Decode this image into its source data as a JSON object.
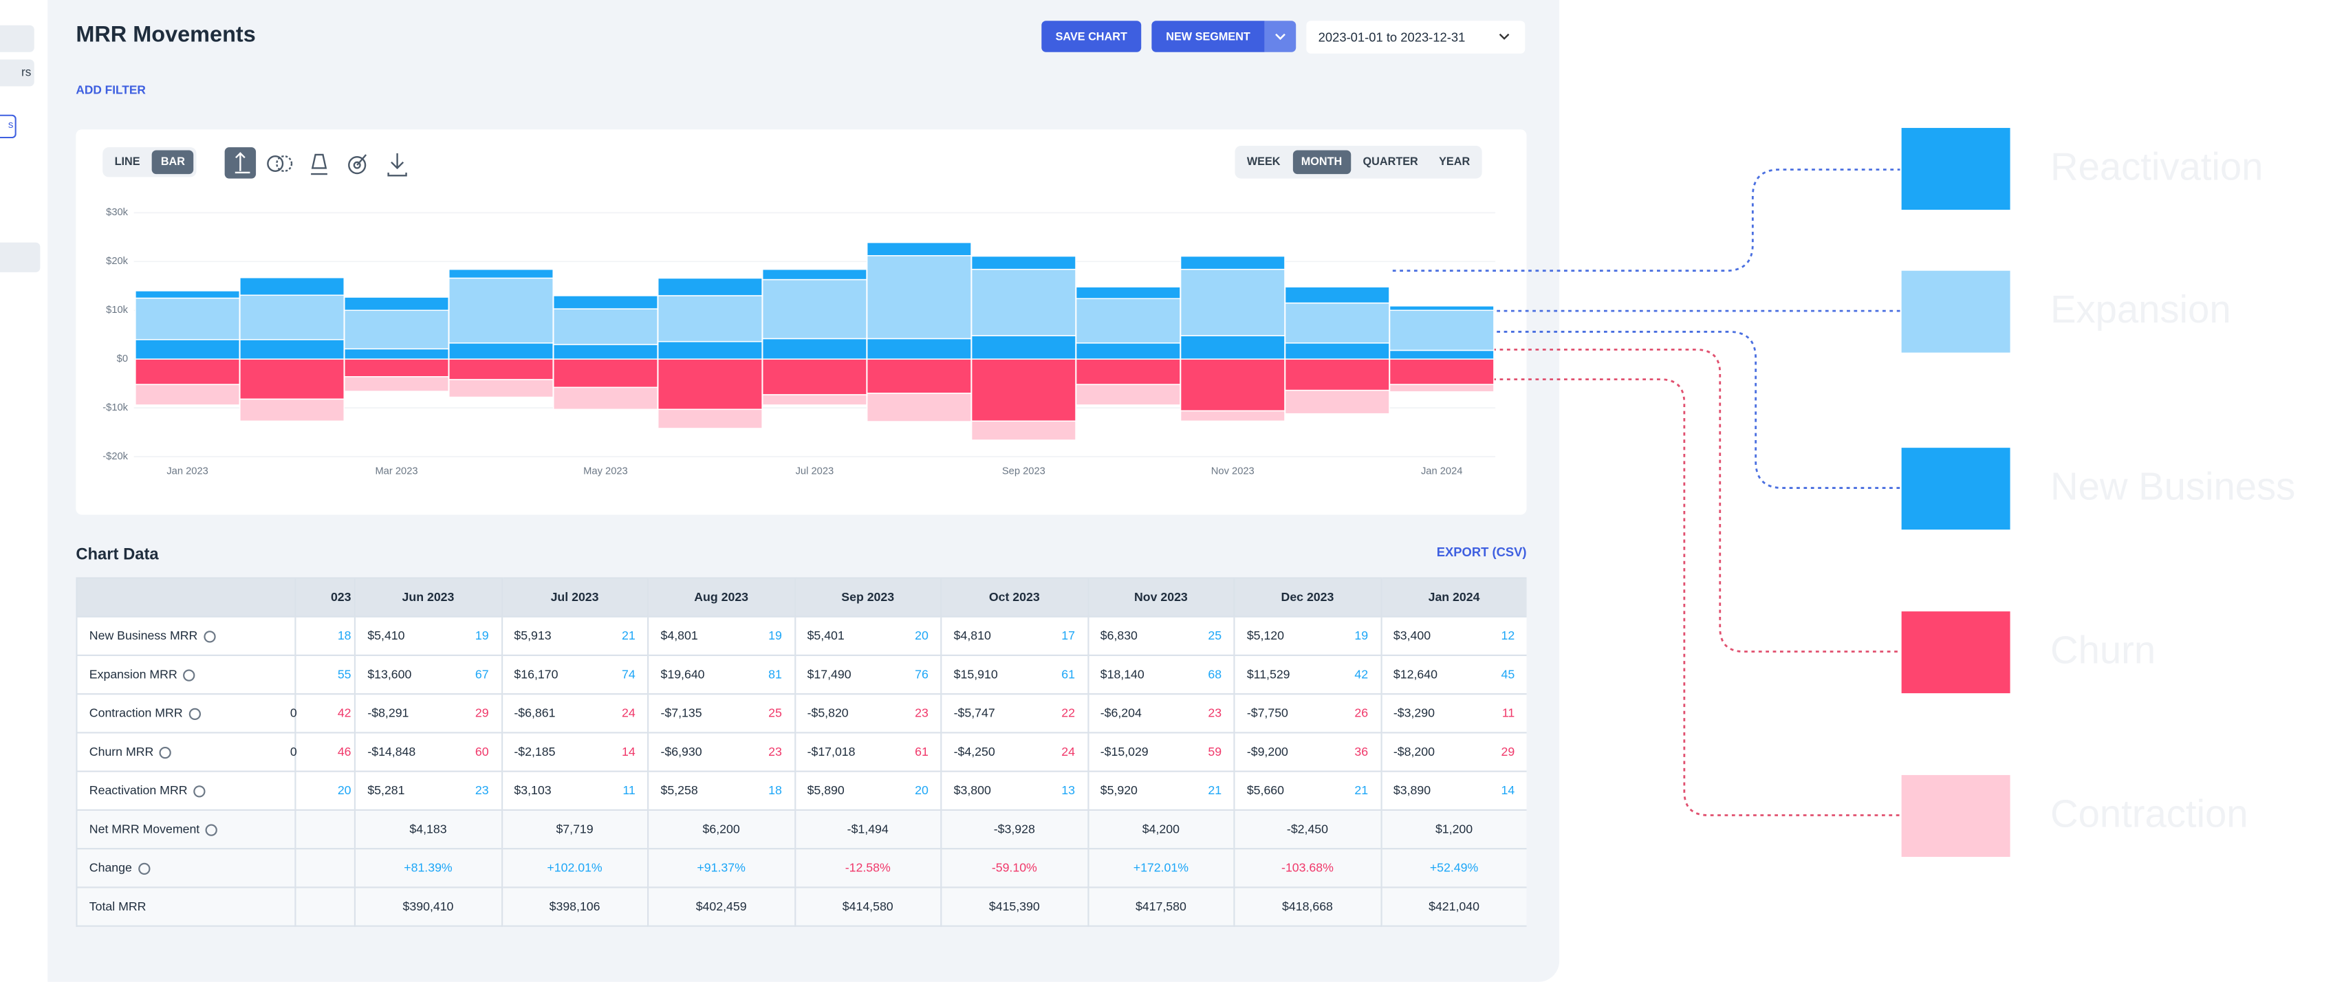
{
  "sidebar": {
    "items": [
      "rs",
      "s"
    ]
  },
  "header": {
    "title": "MRR Movements",
    "save_button": "SAVE CHART",
    "segment_button": "NEW SEGMENT",
    "date_range": "2023-01-01 to 2023-12-31",
    "add_filter": "ADD FILTER"
  },
  "toolbar": {
    "chart_types": [
      "LINE",
      "BAR"
    ],
    "active_chart_type": 1,
    "periods": [
      "WEEK",
      "MONTH",
      "QUARTER",
      "YEAR"
    ],
    "active_period": 1
  },
  "chart_data": {
    "type": "stacked-bar",
    "categories": [
      "Jan 2023",
      null,
      "Mar 2023",
      null,
      "May 2023",
      null,
      "Jul 2023",
      null,
      "Sep 2023",
      null,
      "Nov 2023",
      null,
      "Jan 2024"
    ],
    "series": [
      {
        "name": "New Business",
        "color": "#1ca6f7",
        "values": [
          4000,
          4000,
          2100,
          3300,
          3000,
          3600,
          4200,
          4200,
          4800,
          3300,
          4800,
          3300,
          1800
        ]
      },
      {
        "name": "Expansion",
        "color": "#9dd7fb",
        "values": [
          8500,
          9100,
          7900,
          13300,
          7300,
          9400,
          12100,
          17000,
          13600,
          9100,
          13600,
          8200,
          8200
        ]
      },
      {
        "name": "Reactivation",
        "color": "#1ca6f7",
        "values": [
          1500,
          3600,
          2700,
          1800,
          2700,
          3600,
          2100,
          2700,
          2700,
          2400,
          2700,
          3300,
          900
        ]
      },
      {
        "name": "Churn",
        "color": "#fe456f",
        "values": [
          -5200,
          -8200,
          -3600,
          -4200,
          -5800,
          -10300,
          -7300,
          -7000,
          -12700,
          -5200,
          -10600,
          -6400,
          -5200
        ]
      },
      {
        "name": "Contraction",
        "color": "#ffcad7",
        "values": [
          -4200,
          -4500,
          -3000,
          -3600,
          -4500,
          -3900,
          -2100,
          -5800,
          -3900,
          -4200,
          -2100,
          -4800,
          -1500
        ]
      }
    ],
    "ylim": [
      -20000,
      30000
    ],
    "yticks": [
      {
        "value": -20000,
        "label": "-$20k"
      },
      {
        "value": -10000,
        "label": "-$10k"
      },
      {
        "value": 0,
        "label": "$0"
      },
      {
        "value": 10000,
        "label": "$10k"
      },
      {
        "value": 20000,
        "label": "$20k"
      },
      {
        "value": 30000,
        "label": "$30k"
      }
    ],
    "grid": true
  },
  "table": {
    "title": "Chart Data",
    "export": "EXPORT (CSV)",
    "columns": [
      "023",
      "Jun 2023",
      "Jul 2023",
      "Aug 2023",
      "Sep 2023",
      "Oct 2023",
      "Nov 2023",
      "Dec 2023",
      "Jan 2024"
    ],
    "rows": [
      {
        "label": "New Business MRR",
        "help": true,
        "count_color": "#1ca6f7",
        "cells": [
          {
            "count": "18"
          },
          {
            "amount": "$5,410",
            "count": "19"
          },
          {
            "amount": "$5,913",
            "count": "21"
          },
          {
            "amount": "$4,801",
            "count": "19"
          },
          {
            "amount": "$5,401",
            "count": "20"
          },
          {
            "amount": "$4,810",
            "count": "17"
          },
          {
            "amount": "$6,830",
            "count": "25"
          },
          {
            "amount": "$5,120",
            "count": "19"
          },
          {
            "amount": "$3,400",
            "count": "12"
          }
        ]
      },
      {
        "label": "Expansion MRR",
        "help": true,
        "count_color": "#1ca6f7",
        "cells": [
          {
            "count": "55"
          },
          {
            "amount": "$13,600",
            "count": "67"
          },
          {
            "amount": "$16,170",
            "count": "74"
          },
          {
            "amount": "$19,640",
            "count": "81"
          },
          {
            "amount": "$17,490",
            "count": "76"
          },
          {
            "amount": "$15,910",
            "count": "61"
          },
          {
            "amount": "$18,140",
            "count": "68"
          },
          {
            "amount": "$11,529",
            "count": "42"
          },
          {
            "amount": "$12,640",
            "count": "45"
          }
        ]
      },
      {
        "label": "Contraction MRR",
        "help": true,
        "count_color": "#f0386a",
        "cells": [
          {
            "amount": "0",
            "count": "42"
          },
          {
            "amount": "-$8,291",
            "count": "29"
          },
          {
            "amount": "-$6,861",
            "count": "24"
          },
          {
            "amount": "-$7,135",
            "count": "25"
          },
          {
            "amount": "-$5,820",
            "count": "23"
          },
          {
            "amount": "-$5,747",
            "count": "22"
          },
          {
            "amount": "-$6,204",
            "count": "23"
          },
          {
            "amount": "-$7,750",
            "count": "26"
          },
          {
            "amount": "-$3,290",
            "count": "11"
          }
        ]
      },
      {
        "label": "Churn MRR",
        "help": true,
        "count_color": "#f0386a",
        "cells": [
          {
            "amount": "0",
            "count": "46"
          },
          {
            "amount": "-$14,848",
            "count": "60"
          },
          {
            "amount": "-$2,185",
            "count": "14"
          },
          {
            "amount": "-$6,930",
            "count": "23"
          },
          {
            "amount": "-$17,018",
            "count": "61"
          },
          {
            "amount": "-$4,250",
            "count": "24"
          },
          {
            "amount": "-$15,029",
            "count": "59"
          },
          {
            "amount": "-$9,200",
            "count": "36"
          },
          {
            "amount": "-$8,200",
            "count": "29"
          }
        ]
      },
      {
        "label": "Reactivation MRR",
        "help": true,
        "count_color": "#1ca6f7",
        "cells": [
          {
            "count": "20"
          },
          {
            "amount": "$5,281",
            "count": "23"
          },
          {
            "amount": "$3,103",
            "count": "11"
          },
          {
            "amount": "$5,258",
            "count": "18"
          },
          {
            "amount": "$5,890",
            "count": "20"
          },
          {
            "amount": "$3,800",
            "count": "13"
          },
          {
            "amount": "$5,920",
            "count": "21"
          },
          {
            "amount": "$5,660",
            "count": "21"
          },
          {
            "amount": "$3,890",
            "count": "14"
          }
        ]
      },
      {
        "label": "Net MRR Movement",
        "help": true,
        "cells": [
          null,
          {
            "amount": "$4,183"
          },
          {
            "amount": "$7,719"
          },
          {
            "amount": "$6,200"
          },
          {
            "amount": "-$1,494"
          },
          {
            "amount": "-$3,928"
          },
          {
            "amount": "$4,200"
          },
          {
            "amount": "-$2,450"
          },
          {
            "amount": "$1,200"
          }
        ]
      },
      {
        "label": "Change",
        "help": true,
        "cells": [
          null,
          {
            "change": "+81.39%"
          },
          {
            "change": "+102.01%"
          },
          {
            "change": "+91.37%"
          },
          {
            "change": "-12.58%"
          },
          {
            "change": "-59.10%"
          },
          {
            "change": "+172.01%"
          },
          {
            "change": "-103.68%"
          },
          {
            "change": "+52.49%"
          }
        ]
      },
      {
        "label": "Total MRR",
        "help": false,
        "cells": [
          null,
          {
            "amount": "$390,410"
          },
          {
            "amount": "$398,106"
          },
          {
            "amount": "$402,459"
          },
          {
            "amount": "$414,580"
          },
          {
            "amount": "$415,390"
          },
          {
            "amount": "$417,580"
          },
          {
            "amount": "$418,668"
          },
          {
            "amount": "$421,040"
          }
        ]
      }
    ]
  }
}
